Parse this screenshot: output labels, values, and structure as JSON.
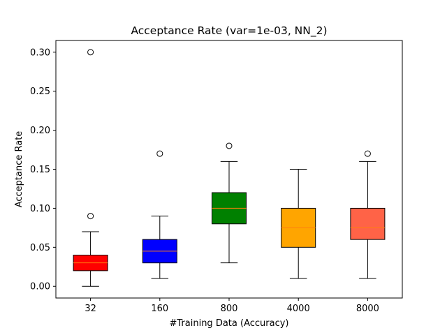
{
  "chart_data": {
    "type": "box",
    "title": "Acceptance Rate (var=1e-03, NN_2)",
    "xlabel": "#Training Data (Accuracy)",
    "ylabel": "Acceptance Rate",
    "ylim": [
      -0.015,
      0.315
    ],
    "yticks": [
      0.0,
      0.05,
      0.1,
      0.15,
      0.2,
      0.25,
      0.3
    ],
    "ytick_labels": [
      "0.00",
      "0.05",
      "0.10",
      "0.15",
      "0.20",
      "0.25",
      "0.30"
    ],
    "grid": false,
    "categories": [
      "32",
      "160",
      "800",
      "4000",
      "8000"
    ],
    "boxes": [
      {
        "category": "32",
        "whisker_low": 0.0,
        "q1": 0.02,
        "median": 0.03,
        "q3": 0.04,
        "whisker_high": 0.07,
        "outliers": [
          0.09,
          0.3
        ],
        "color": "#ff0000"
      },
      {
        "category": "160",
        "whisker_low": 0.01,
        "q1": 0.03,
        "median": 0.045,
        "q3": 0.06,
        "whisker_high": 0.09,
        "outliers": [
          0.17
        ],
        "color": "#0000ff"
      },
      {
        "category": "800",
        "whisker_low": 0.03,
        "q1": 0.08,
        "median": 0.1,
        "q3": 0.12,
        "whisker_high": 0.16,
        "outliers": [
          0.18
        ],
        "color": "#008000"
      },
      {
        "category": "4000",
        "whisker_low": 0.01,
        "q1": 0.05,
        "median": 0.075,
        "q3": 0.1,
        "whisker_high": 0.15,
        "outliers": [],
        "color": "#ffa500"
      },
      {
        "category": "8000",
        "whisker_low": 0.01,
        "q1": 0.06,
        "median": 0.075,
        "q3": 0.1,
        "whisker_high": 0.16,
        "outliers": [
          0.17
        ],
        "color": "#ff6347"
      }
    ],
    "median_color": "#ff7f0e"
  }
}
